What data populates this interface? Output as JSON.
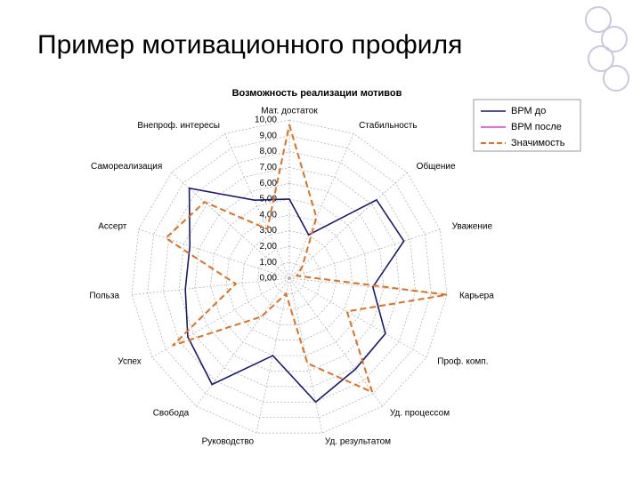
{
  "slide_title": "Пример мотивационного профиля",
  "chart_data": {
    "type": "radar",
    "title": "Возможность реализации мотивов",
    "categories": [
      "Мат. достаток",
      "Стабильность",
      "Общение",
      "Уважение",
      "Карьера",
      "Проф. комп.",
      "Уд. процессом",
      "Уд. результатом",
      "Руководство",
      "Свобода",
      "Успех",
      "Польза",
      "Ассерт",
      "Самореализация",
      "Внепроф. интересы"
    ],
    "series": [
      {
        "name": "ВРМ до",
        "color": "#1a1a6e",
        "dash": false,
        "values": [
          5.0,
          3.0,
          7.4,
          7.6,
          5.3,
          7.0,
          7.1,
          8.0,
          5.0,
          8.3,
          7.4,
          6.6,
          6.6,
          8.5,
          5.4
        ]
      },
      {
        "name": "ВРМ после",
        "color": "#e040c0",
        "dash": false,
        "values": [
          null,
          null,
          null,
          null,
          null,
          null,
          null,
          null,
          null,
          null,
          null,
          null,
          null,
          null,
          null
        ]
      },
      {
        "name": "Значимость",
        "color": "#e07020",
        "dash": true,
        "values": [
          9.7,
          4.2,
          1.1,
          0.5,
          10.0,
          4.2,
          8.9,
          5.5,
          1.0,
          3.0,
          8.5,
          3.4,
          8.2,
          7.2,
          3.4
        ]
      }
    ],
    "ylim": [
      0,
      10
    ],
    "yticks": [
      {
        "value": 0,
        "label": "0,00"
      },
      {
        "value": 1,
        "label": "1,00"
      },
      {
        "value": 2,
        "label": "2,00"
      },
      {
        "value": 3,
        "label": "3,00"
      },
      {
        "value": 4,
        "label": "4,00"
      },
      {
        "value": 5,
        "label": "5,00"
      },
      {
        "value": 6,
        "label": "6,00"
      },
      {
        "value": 7,
        "label": "7,00"
      },
      {
        "value": 8,
        "label": "8,00"
      },
      {
        "value": 9,
        "label": "9,00"
      },
      {
        "value": 10,
        "label": "10,00"
      }
    ],
    "grid": true,
    "legend": "top-right"
  }
}
